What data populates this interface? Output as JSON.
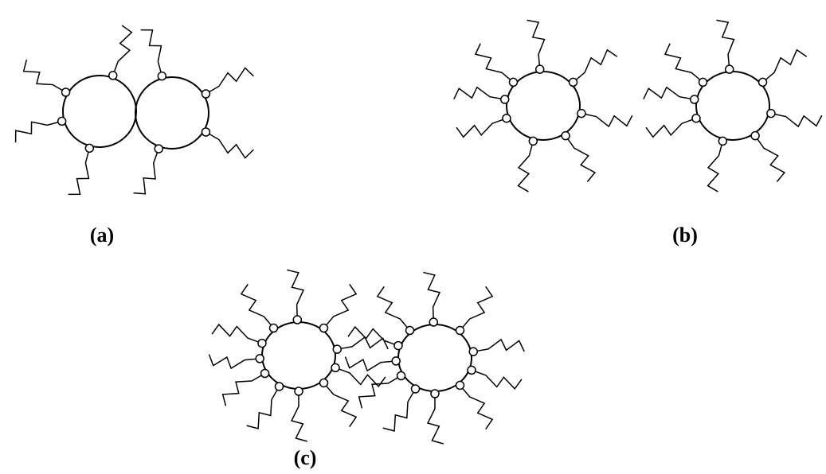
{
  "labels": {
    "a": "(a)",
    "b": "(b)",
    "c": "(c)"
  }
}
